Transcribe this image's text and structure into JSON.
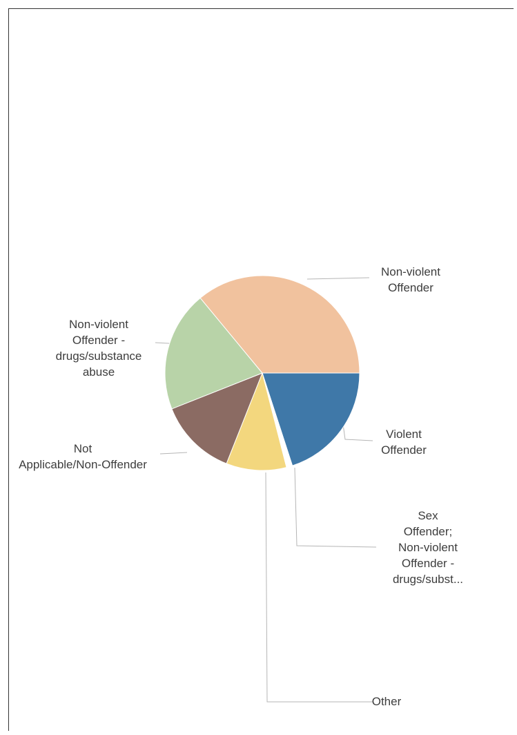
{
  "chart_data": {
    "type": "pie",
    "title": "",
    "start_angle_deg": 0,
    "direction": "clockwise",
    "slices": [
      {
        "label_lines": [
          "Violent",
          "Offender"
        ],
        "value": 20,
        "color": "#3f78a8"
      },
      {
        "label_lines": [
          "Sex",
          "Offender;",
          "Non-violent",
          "Offender -",
          "drugs/subst..."
        ],
        "value": 1,
        "color": "#ffffff"
      },
      {
        "label_lines": [
          "Other"
        ],
        "value": 10,
        "color": "#f3d77e"
      },
      {
        "label_lines": [
          "Not",
          "Applicable/Non-Offender"
        ],
        "value": 13,
        "color": "#8b6b63"
      },
      {
        "label_lines": [
          "Non-violent",
          "Offender -",
          "drugs/substance",
          "abuse"
        ],
        "value": 20,
        "color": "#b8d3a8"
      },
      {
        "label_lines": [
          "Non-violent",
          "Offender"
        ],
        "value": 36,
        "color": "#f1c29e"
      }
    ]
  }
}
